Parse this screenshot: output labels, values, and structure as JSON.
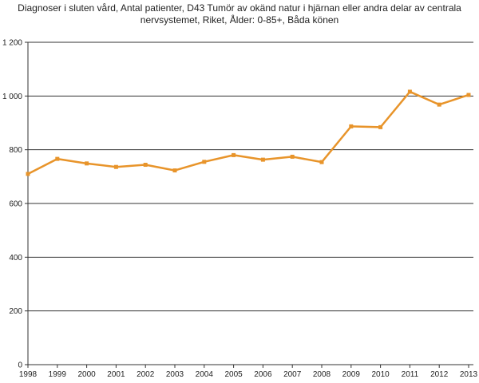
{
  "chart_data": {
    "type": "line",
    "title_lines": [
      "Diagnoser i sluten vård, Antal patienter, D43 Tumör av okänd natur i hjärnan eller andra delar av centrala",
      "nervsystemet, Riket, Ålder: 0-85+, Båda könen"
    ],
    "x": [
      "1998",
      "1999",
      "2000",
      "2001",
      "2002",
      "2003",
      "2004",
      "2005",
      "2006",
      "2007",
      "2008",
      "2009",
      "2010",
      "2011",
      "2012",
      "2013"
    ],
    "series": [
      {
        "values": [
          710,
          766,
          749,
          736,
          744,
          723,
          755,
          780,
          763,
          774,
          754,
          887,
          884,
          1016,
          968,
          1004
        ]
      }
    ],
    "ylim": [
      0,
      1200
    ],
    "yticks": [
      0,
      200,
      400,
      600,
      800,
      1000,
      1200
    ],
    "ytick_labels": [
      "0",
      "200",
      "400",
      "600",
      "800",
      "1 000",
      "1 200"
    ],
    "grid": true,
    "line_color": "#e8942a",
    "grid_color": "#333333"
  }
}
